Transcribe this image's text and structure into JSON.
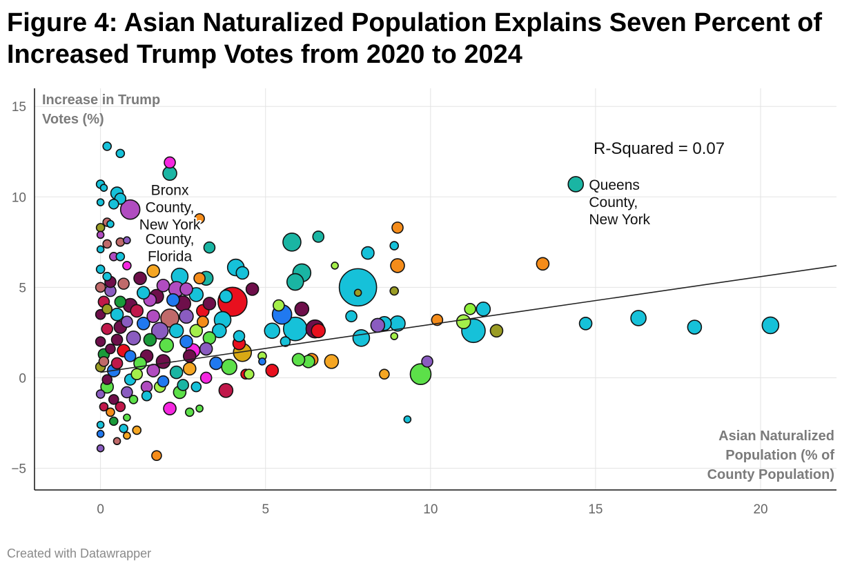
{
  "header": {
    "title": "Figure 4: Asian Naturalized Population Explains Seven Percent of Increased Trump Votes from 2020 to 2024"
  },
  "footer": {
    "credit": "Created with Datawrapper"
  },
  "chart_data": {
    "type": "scatter",
    "title": "Figure 4: Asian Naturalized Population Explains Seven Percent of Increased Trump Votes from 2020 to 2024",
    "xlabel_lines": [
      "Asian Naturalized",
      "Population (% of",
      "County Population)"
    ],
    "ylabel_lines": [
      "Increase in Trump",
      "Votes (%)"
    ],
    "xlim": [
      -2,
      22.3
    ],
    "ylim": [
      -6.2,
      16
    ],
    "xticks": [
      0,
      5,
      10,
      15,
      20
    ],
    "yticks": [
      -5,
      0,
      5,
      10,
      15
    ],
    "xtick_labels": [
      "0",
      "5",
      "10",
      "15",
      "20"
    ],
    "ytick_labels": [
      "−5",
      "0",
      "5",
      "10",
      "15"
    ],
    "grid": true,
    "trendline": {
      "x": [
        0,
        22.3
      ],
      "y": [
        0.3,
        6.2
      ]
    },
    "r_squared_label": "R-Squared = 0.07",
    "annotations": [
      {
        "lines": [
          "Bronx",
          "County,",
          "New York"
        ],
        "x": 2.1,
        "y": 10.1,
        "align": "center"
      },
      {
        "lines": [
          "County,",
          "Florida"
        ],
        "x": 2.1,
        "y": 7.4,
        "align": "center"
      },
      {
        "lines": [
          "Queens",
          "County,",
          "New York"
        ],
        "x": 14.8,
        "y": 10.4,
        "align": "start"
      }
    ],
    "points": [
      {
        "x": 14.4,
        "y": 10.7,
        "r": 11,
        "c": "#1ab5a3"
      },
      {
        "x": 0.9,
        "y": 9.3,
        "r": 14,
        "c": "#b04cc0"
      },
      {
        "x": 7.8,
        "y": 5.0,
        "r": 27,
        "c": "#16c1d9"
      },
      {
        "x": 4.0,
        "y": 4.2,
        "r": 21,
        "c": "#e8101e"
      },
      {
        "x": 5.5,
        "y": 3.5,
        "r": 14,
        "c": "#2079f0"
      },
      {
        "x": 9.7,
        "y": 0.2,
        "r": 15,
        "c": "#5ce049"
      },
      {
        "x": 11.3,
        "y": 2.6,
        "r": 17,
        "c": "#16c1d9"
      },
      {
        "x": 20.3,
        "y": 2.9,
        "r": 12,
        "c": "#16c1d9"
      },
      {
        "x": 18.0,
        "y": 2.8,
        "r": 10,
        "c": "#16c1d9"
      },
      {
        "x": 16.3,
        "y": 3.3,
        "r": 11,
        "c": "#16c1d9"
      },
      {
        "x": 14.7,
        "y": 3.0,
        "r": 9,
        "c": "#16c1d9"
      },
      {
        "x": 13.4,
        "y": 6.3,
        "r": 9,
        "c": "#f58c1a"
      },
      {
        "x": 12.0,
        "y": 2.6,
        "r": 9,
        "c": "#9a9c24"
      },
      {
        "x": 11.6,
        "y": 3.8,
        "r": 10,
        "c": "#16c1d9"
      },
      {
        "x": 11.2,
        "y": 3.8,
        "r": 8,
        "c": "#8ef03a"
      },
      {
        "x": 11.0,
        "y": 3.1,
        "r": 10,
        "c": "#a4ef4a"
      },
      {
        "x": 10.2,
        "y": 3.2,
        "r": 8,
        "c": "#f58c1a"
      },
      {
        "x": 9.9,
        "y": 0.9,
        "r": 8,
        "c": "#8a5cc0"
      },
      {
        "x": 9.3,
        "y": -2.3,
        "r": 5,
        "c": "#16c1d9"
      },
      {
        "x": 9.0,
        "y": 8.3,
        "r": 8,
        "c": "#f58c1a"
      },
      {
        "x": 9.0,
        "y": 6.2,
        "r": 10,
        "c": "#f58c1a"
      },
      {
        "x": 8.9,
        "y": 7.3,
        "r": 6,
        "c": "#16c1d9"
      },
      {
        "x": 8.9,
        "y": 4.8,
        "r": 6,
        "c": "#9a9c24"
      },
      {
        "x": 8.9,
        "y": 2.3,
        "r": 5,
        "c": "#a4ef4a"
      },
      {
        "x": 9.0,
        "y": 3.0,
        "r": 11,
        "c": "#16c1d9"
      },
      {
        "x": 8.6,
        "y": 3.0,
        "r": 10,
        "c": "#16c1d9"
      },
      {
        "x": 8.4,
        "y": 2.9,
        "r": 10,
        "c": "#8a5cc0"
      },
      {
        "x": 8.6,
        "y": 0.2,
        "r": 7,
        "c": "#f5a623"
      },
      {
        "x": 8.1,
        "y": 6.9,
        "r": 9,
        "c": "#16c1d9"
      },
      {
        "x": 7.9,
        "y": 2.2,
        "r": 12,
        "c": "#16c1d9"
      },
      {
        "x": 7.6,
        "y": 3.4,
        "r": 8,
        "c": "#16c1d9"
      },
      {
        "x": 7.8,
        "y": 4.7,
        "r": 5,
        "c": "#9a9c24"
      },
      {
        "x": 7.1,
        "y": 6.2,
        "r": 5,
        "c": "#a4ef4a"
      },
      {
        "x": 6.6,
        "y": 7.8,
        "r": 8,
        "c": "#1ab5a3"
      },
      {
        "x": 6.1,
        "y": 5.8,
        "r": 13,
        "c": "#1ab5a3"
      },
      {
        "x": 5.9,
        "y": 5.3,
        "r": 12,
        "c": "#1ab5a3"
      },
      {
        "x": 5.8,
        "y": 7.5,
        "r": 13,
        "c": "#1ab5a3"
      },
      {
        "x": 6.1,
        "y": 3.8,
        "r": 10,
        "c": "#6e0f4a"
      },
      {
        "x": 5.9,
        "y": 2.7,
        "r": 17,
        "c": "#16c1d9"
      },
      {
        "x": 6.5,
        "y": 2.7,
        "r": 13,
        "c": "#6e0f4a"
      },
      {
        "x": 6.6,
        "y": 2.6,
        "r": 10,
        "c": "#e8101e"
      },
      {
        "x": 7.0,
        "y": 0.9,
        "r": 10,
        "c": "#f5a623"
      },
      {
        "x": 6.4,
        "y": 1.0,
        "r": 9,
        "c": "#f58c1a"
      },
      {
        "x": 6.3,
        "y": 0.9,
        "r": 9,
        "c": "#5ce049"
      },
      {
        "x": 6.0,
        "y": 1.0,
        "r": 9,
        "c": "#5ce049"
      },
      {
        "x": 5.6,
        "y": 2.0,
        "r": 7,
        "c": "#16c1d9"
      },
      {
        "x": 5.4,
        "y": 4.0,
        "r": 8,
        "c": "#a4ef4a"
      },
      {
        "x": 5.2,
        "y": 2.6,
        "r": 11,
        "c": "#16c1d9"
      },
      {
        "x": 5.2,
        "y": 0.4,
        "r": 9,
        "c": "#e8101e"
      },
      {
        "x": 4.9,
        "y": 1.2,
        "r": 6,
        "c": "#a4ef4a"
      },
      {
        "x": 4.9,
        "y": 0.9,
        "r": 5,
        "c": "#2079f0"
      },
      {
        "x": 4.6,
        "y": 4.9,
        "r": 9,
        "c": "#6e0f4a"
      },
      {
        "x": 4.3,
        "y": 5.8,
        "r": 9,
        "c": "#16c1d9"
      },
      {
        "x": 4.1,
        "y": 6.1,
        "r": 12,
        "c": "#16c1d9"
      },
      {
        "x": 4.2,
        "y": 1.9,
        "r": 9,
        "c": "#e8101e"
      },
      {
        "x": 4.3,
        "y": 1.4,
        "r": 13,
        "c": "#d9a915"
      },
      {
        "x": 4.2,
        "y": 2.3,
        "r": 8,
        "c": "#16c1d9"
      },
      {
        "x": 3.9,
        "y": 0.6,
        "r": 11,
        "c": "#5ce049"
      },
      {
        "x": 3.8,
        "y": -0.7,
        "r": 10,
        "c": "#c0184a"
      },
      {
        "x": 4.4,
        "y": 0.2,
        "r": 7,
        "c": "#e8101e"
      },
      {
        "x": 4.5,
        "y": 0.2,
        "r": 7,
        "c": "#a4ef4a"
      },
      {
        "x": 3.8,
        "y": 4.5,
        "r": 9,
        "c": "#16c1d9"
      },
      {
        "x": 3.7,
        "y": 3.2,
        "r": 12,
        "c": "#16c1d9"
      },
      {
        "x": 3.3,
        "y": 7.2,
        "r": 8,
        "c": "#1ab5a3"
      },
      {
        "x": 3.2,
        "y": 5.5,
        "r": 10,
        "c": "#1ab5a3"
      },
      {
        "x": 3.0,
        "y": 5.5,
        "r": 8,
        "c": "#f58c1a"
      },
      {
        "x": 3.0,
        "y": 8.8,
        "r": 7,
        "c": "#f58c1a"
      },
      {
        "x": 3.1,
        "y": 3.7,
        "r": 9,
        "c": "#e8101e"
      },
      {
        "x": 3.1,
        "y": 3.1,
        "r": 8,
        "c": "#f58c1a"
      },
      {
        "x": 3.0,
        "y": -1.7,
        "r": 5,
        "c": "#5ce049"
      },
      {
        "x": 2.7,
        "y": -1.9,
        "r": 6,
        "c": "#5ce049"
      },
      {
        "x": 2.1,
        "y": -1.7,
        "r": 9,
        "c": "#f527e0"
      },
      {
        "x": 1.7,
        "y": -4.3,
        "r": 7,
        "c": "#f58c1a"
      },
      {
        "x": 2.1,
        "y": 11.9,
        "r": 8,
        "c": "#f527e0"
      },
      {
        "x": 2.1,
        "y": 11.3,
        "r": 10,
        "c": "#1ab5a3"
      },
      {
        "x": 2.4,
        "y": 5.6,
        "r": 12,
        "c": "#16c1d9"
      },
      {
        "x": 2.3,
        "y": 4.9,
        "r": 11,
        "c": "#b04cc0"
      },
      {
        "x": 2.1,
        "y": 3.3,
        "r": 13,
        "c": "#c06a6a"
      },
      {
        "x": 2.5,
        "y": 4.1,
        "r": 11,
        "c": "#6e0f4a"
      },
      {
        "x": 2.6,
        "y": 2.0,
        "r": 9,
        "c": "#2079f0"
      },
      {
        "x": 1.8,
        "y": 2.6,
        "r": 12,
        "c": "#8a5cc0"
      },
      {
        "x": 1.9,
        "y": 0.9,
        "r": 10,
        "c": "#6e0f4a"
      },
      {
        "x": 2.8,
        "y": 1.5,
        "r": 10,
        "c": "#f527e0"
      },
      {
        "x": 2.7,
        "y": 0.5,
        "r": 9,
        "c": "#f5a623"
      },
      {
        "x": 2.4,
        "y": -0.8,
        "r": 9,
        "c": "#5ce049"
      },
      {
        "x": 1.2,
        "y": 5.5,
        "r": 9,
        "c": "#6e0f4a"
      },
      {
        "x": 0.9,
        "y": 4.0,
        "r": 10,
        "c": "#6e0f4a"
      },
      {
        "x": 1.3,
        "y": 3.0,
        "r": 9,
        "c": "#2079f0"
      },
      {
        "x": 1.0,
        "y": 2.2,
        "r": 10,
        "c": "#8a5cc0"
      },
      {
        "x": 1.4,
        "y": 1.2,
        "r": 9,
        "c": "#6e0f4a"
      },
      {
        "x": 1.5,
        "y": 4.3,
        "r": 9,
        "c": "#b04cc0"
      },
      {
        "x": 1.7,
        "y": 4.5,
        "r": 10,
        "c": "#6e0f4a"
      },
      {
        "x": 0.5,
        "y": 3.5,
        "r": 9,
        "c": "#16c1d9"
      },
      {
        "x": 0.6,
        "y": 2.8,
        "r": 9,
        "c": "#6e0f4a"
      },
      {
        "x": 0.7,
        "y": 1.5,
        "r": 9,
        "c": "#e8101e"
      },
      {
        "x": 0.3,
        "y": 4.8,
        "r": 8,
        "c": "#8a5cc0"
      },
      {
        "x": 0.4,
        "y": 0.4,
        "r": 9,
        "c": "#2079f0"
      },
      {
        "x": 0.8,
        "y": -0.8,
        "r": 8,
        "c": "#8a5cc0"
      },
      {
        "x": 0.2,
        "y": -0.5,
        "r": 9,
        "c": "#5ce049"
      },
      {
        "x": 0.6,
        "y": -1.6,
        "r": 7,
        "c": "#c0184a"
      },
      {
        "x": 0.4,
        "y": -1.2,
        "r": 7,
        "c": "#6e0f4a"
      },
      {
        "x": 0.2,
        "y": 12.8,
        "r": 6,
        "c": "#16c1d9"
      },
      {
        "x": 0.6,
        "y": 12.4,
        "r": 6,
        "c": "#16c1d9"
      },
      {
        "x": 0.5,
        "y": 10.2,
        "r": 9,
        "c": "#16c1d9"
      },
      {
        "x": 0.6,
        "y": 9.9,
        "r": 8,
        "c": "#16c1d9"
      },
      {
        "x": 0.4,
        "y": 9.6,
        "r": 7,
        "c": "#16c1d9"
      },
      {
        "x": 0.0,
        "y": 10.7,
        "r": 6,
        "c": "#16c1d9"
      },
      {
        "x": 0.1,
        "y": 10.5,
        "r": 5,
        "c": "#16c1d9"
      },
      {
        "x": 0.0,
        "y": 9.7,
        "r": 5,
        "c": "#16c1d9"
      },
      {
        "x": 0.2,
        "y": 8.6,
        "r": 6,
        "c": "#c06a6a"
      },
      {
        "x": 0.0,
        "y": 8.3,
        "r": 6,
        "c": "#9a9c24"
      },
      {
        "x": 0.3,
        "y": 8.5,
        "r": 5,
        "c": "#16c1d9"
      },
      {
        "x": 0.0,
        "y": 7.9,
        "r": 5,
        "c": "#b04cc0"
      },
      {
        "x": 0.2,
        "y": 7.4,
        "r": 6,
        "c": "#c06a6a"
      },
      {
        "x": 0.6,
        "y": 7.5,
        "r": 6,
        "c": "#c06a6a"
      },
      {
        "x": 0.8,
        "y": 7.6,
        "r": 5,
        "c": "#8a5cc0"
      },
      {
        "x": 0.0,
        "y": 7.1,
        "r": 5,
        "c": "#16c1d9"
      },
      {
        "x": 0.4,
        "y": 6.7,
        "r": 6,
        "c": "#b04cc0"
      },
      {
        "x": 0.6,
        "y": 6.7,
        "r": 6,
        "c": "#16c1d9"
      },
      {
        "x": 0.8,
        "y": 6.2,
        "r": 6,
        "c": "#f527e0"
      },
      {
        "x": 0.0,
        "y": 6.0,
        "r": 6,
        "c": "#16c1d9"
      },
      {
        "x": 0.2,
        "y": 5.6,
        "r": 6,
        "c": "#16c1d9"
      },
      {
        "x": 0.0,
        "y": 5.0,
        "r": 7,
        "c": "#c06a6a"
      },
      {
        "x": 0.1,
        "y": 4.2,
        "r": 8,
        "c": "#c0184a"
      },
      {
        "x": 0.0,
        "y": 3.5,
        "r": 7,
        "c": "#6e0f4a"
      },
      {
        "x": 0.2,
        "y": 2.7,
        "r": 8,
        "c": "#c0184a"
      },
      {
        "x": 0.0,
        "y": 2.0,
        "r": 7,
        "c": "#6e0f4a"
      },
      {
        "x": 0.1,
        "y": 1.3,
        "r": 8,
        "c": "#1a9a3a"
      },
      {
        "x": 0.0,
        "y": 0.6,
        "r": 7,
        "c": "#9a9c24"
      },
      {
        "x": 0.2,
        "y": -0.1,
        "r": 7,
        "c": "#6e0f4a"
      },
      {
        "x": 0.0,
        "y": -0.9,
        "r": 6,
        "c": "#8a5cc0"
      },
      {
        "x": 0.1,
        "y": -1.6,
        "r": 6,
        "c": "#c0184a"
      },
      {
        "x": 0.0,
        "y": -2.6,
        "r": 5,
        "c": "#16c1d9"
      },
      {
        "x": 0.0,
        "y": -3.1,
        "r": 5,
        "c": "#2079f0"
      },
      {
        "x": 0.0,
        "y": -3.9,
        "r": 5,
        "c": "#8a5cc0"
      },
      {
        "x": 0.5,
        "y": -3.5,
        "r": 5,
        "c": "#c06a6a"
      },
      {
        "x": 0.8,
        "y": -3.2,
        "r": 5,
        "c": "#f5a623"
      },
      {
        "x": 0.7,
        "y": -2.8,
        "r": 6,
        "c": "#16c1d9"
      },
      {
        "x": 1.1,
        "y": -2.9,
        "r": 6,
        "c": "#f5a623"
      },
      {
        "x": 0.8,
        "y": -2.2,
        "r": 5,
        "c": "#5ce049"
      },
      {
        "x": 0.4,
        "y": -2.4,
        "r": 6,
        "c": "#1a9a3a"
      },
      {
        "x": 0.3,
        "y": -1.9,
        "r": 6,
        "c": "#f58c1a"
      },
      {
        "x": 1.0,
        "y": -1.2,
        "r": 6,
        "c": "#5ce049"
      },
      {
        "x": 1.4,
        "y": -1.0,
        "r": 7,
        "c": "#16c1d9"
      },
      {
        "x": 1.8,
        "y": -0.5,
        "r": 8,
        "c": "#a4ef4a"
      },
      {
        "x": 2.9,
        "y": -0.5,
        "r": 7,
        "c": "#16c1d9"
      },
      {
        "x": 3.2,
        "y": 0.0,
        "r": 8,
        "c": "#f527e0"
      },
      {
        "x": 3.5,
        "y": 0.8,
        "r": 9,
        "c": "#2079f0"
      },
      {
        "x": 3.3,
        "y": 2.2,
        "r": 9,
        "c": "#5ce049"
      },
      {
        "x": 3.6,
        "y": 2.6,
        "r": 10,
        "c": "#16c1d9"
      },
      {
        "x": 2.9,
        "y": 2.6,
        "r": 9,
        "c": "#a4ef4a"
      },
      {
        "x": 2.6,
        "y": 3.4,
        "r": 10,
        "c": "#8a5cc0"
      },
      {
        "x": 2.2,
        "y": 4.3,
        "r": 9,
        "c": "#2079f0"
      },
      {
        "x": 1.9,
        "y": 5.1,
        "r": 9,
        "c": "#b04cc0"
      },
      {
        "x": 1.6,
        "y": 5.9,
        "r": 9,
        "c": "#f5a623"
      },
      {
        "x": 1.3,
        "y": 4.7,
        "r": 9,
        "c": "#16c1d9"
      },
      {
        "x": 1.1,
        "y": 3.7,
        "r": 9,
        "c": "#c0184a"
      },
      {
        "x": 1.6,
        "y": 3.4,
        "r": 9,
        "c": "#b04cc0"
      },
      {
        "x": 2.3,
        "y": 2.6,
        "r": 10,
        "c": "#16c1d9"
      },
      {
        "x": 2.0,
        "y": 1.8,
        "r": 10,
        "c": "#5ce049"
      },
      {
        "x": 1.5,
        "y": 2.1,
        "r": 9,
        "c": "#1a9a3a"
      },
      {
        "x": 1.2,
        "y": 0.8,
        "r": 9,
        "c": "#5ce049"
      },
      {
        "x": 1.6,
        "y": 0.4,
        "r": 9,
        "c": "#b04cc0"
      },
      {
        "x": 2.3,
        "y": 0.3,
        "r": 9,
        "c": "#1ab5a3"
      },
      {
        "x": 2.7,
        "y": 1.2,
        "r": 9,
        "c": "#6e0f4a"
      },
      {
        "x": 3.2,
        "y": 1.6,
        "r": 9,
        "c": "#8a5cc0"
      },
      {
        "x": 3.3,
        "y": 4.1,
        "r": 9,
        "c": "#6e0f4a"
      },
      {
        "x": 2.9,
        "y": 4.6,
        "r": 10,
        "c": "#16c1d9"
      },
      {
        "x": 2.6,
        "y": 4.9,
        "r": 9,
        "c": "#b04cc0"
      },
      {
        "x": 0.6,
        "y": 4.2,
        "r": 8,
        "c": "#1a9a3a"
      },
      {
        "x": 0.8,
        "y": 3.1,
        "r": 8,
        "c": "#8a5cc0"
      },
      {
        "x": 0.5,
        "y": 2.1,
        "r": 8,
        "c": "#6e0f4a"
      },
      {
        "x": 0.9,
        "y": 1.2,
        "r": 8,
        "c": "#2079f0"
      },
      {
        "x": 0.5,
        "y": 0.8,
        "r": 8,
        "c": "#c0184a"
      },
      {
        "x": 0.9,
        "y": -0.1,
        "r": 8,
        "c": "#16c1d9"
      },
      {
        "x": 0.3,
        "y": 5.3,
        "r": 8,
        "c": "#6e0f4a"
      },
      {
        "x": 0.7,
        "y": 5.2,
        "r": 8,
        "c": "#c06a6a"
      },
      {
        "x": 0.2,
        "y": 3.8,
        "r": 7,
        "c": "#9a9c24"
      },
      {
        "x": 0.3,
        "y": 1.6,
        "r": 7,
        "c": "#6e0f4a"
      },
      {
        "x": 0.1,
        "y": 0.9,
        "r": 7,
        "c": "#c06a6a"
      },
      {
        "x": 1.1,
        "y": 0.2,
        "r": 8,
        "c": "#a4ef4a"
      },
      {
        "x": 1.4,
        "y": -0.5,
        "r": 8,
        "c": "#b04cc0"
      },
      {
        "x": 1.9,
        "y": -0.2,
        "r": 8,
        "c": "#2079f0"
      },
      {
        "x": 2.5,
        "y": -0.4,
        "r": 8,
        "c": "#1ab5a3"
      }
    ]
  }
}
